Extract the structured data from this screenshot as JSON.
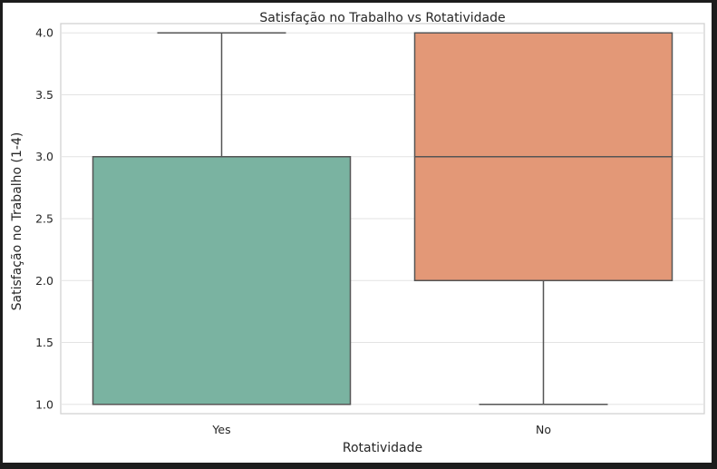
{
  "chart_data": {
    "type": "box",
    "title": "Satisfação no Trabalho vs Rotatividade",
    "xlabel": "Rotatividade",
    "ylabel": "Satisfação no Trabalho (1-4)",
    "ylim": [
      0.925,
      4.075
    ],
    "yticks": [
      1.0,
      1.5,
      2.0,
      2.5,
      3.0,
      3.5,
      4.0
    ],
    "ytick_labels": [
      "1.0",
      "1.5",
      "2.0",
      "2.5",
      "3.0",
      "3.5",
      "4.0"
    ],
    "grid": true,
    "categories": [
      "Yes",
      "No"
    ],
    "boxes": [
      {
        "category": "Yes",
        "whisker_low": 1.0,
        "q1": 1.0,
        "median": 1.0,
        "q3": 3.0,
        "whisker_high": 4.0,
        "color": "#7ab3a1"
      },
      {
        "category": "No",
        "whisker_low": 1.0,
        "q1": 2.0,
        "median": 3.0,
        "q3": 4.0,
        "whisker_high": 4.0,
        "color": "#e39877"
      }
    ]
  }
}
